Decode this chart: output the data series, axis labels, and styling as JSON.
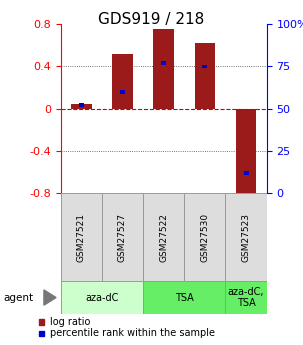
{
  "title": "GDS919 / 218",
  "samples": [
    "GSM27521",
    "GSM27527",
    "GSM27522",
    "GSM27530",
    "GSM27523"
  ],
  "log_ratios": [
    0.04,
    0.52,
    0.75,
    0.62,
    -0.82
  ],
  "percentile_ranks": [
    0.52,
    0.6,
    0.77,
    0.75,
    0.12
  ],
  "bar_color": "#9B1A1A",
  "pct_color": "#0000CC",
  "ylim": [
    -0.8,
    0.8
  ],
  "yticks_left": [
    -0.8,
    -0.4,
    0.0,
    0.4,
    0.8
  ],
  "ytick_labels_left": [
    "-0.8",
    "-0.4",
    "0",
    "0.4",
    "0.8"
  ],
  "yticks_right": [
    0,
    25,
    50,
    75,
    100
  ],
  "ytick_labels_right": [
    "0",
    "25",
    "50",
    "75",
    "100%"
  ],
  "agent_label": "agent",
  "legend_items": [
    {
      "color": "#9B1A1A",
      "label": "log ratio"
    },
    {
      "color": "#0000CC",
      "label": "percentile rank within the sample"
    }
  ],
  "title_fontsize": 11,
  "tick_fontsize": 8,
  "bar_width": 0.5,
  "hline_color": "#CC0000",
  "dotted_color": "#444444",
  "group_defs": [
    {
      "start": 0,
      "end": 2,
      "label": "aza-dC",
      "color": "#CCFFCC"
    },
    {
      "start": 2,
      "end": 4,
      "label": "TSA",
      "color": "#66EE66"
    },
    {
      "start": 4,
      "end": 5,
      "label": "aza-dC,\nTSA",
      "color": "#66EE66"
    }
  ]
}
